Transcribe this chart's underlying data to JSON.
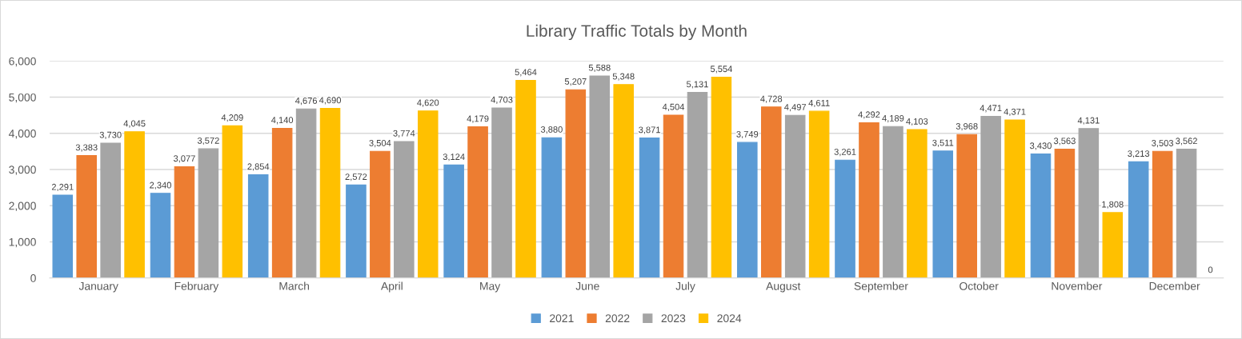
{
  "chart_data": {
    "type": "bar",
    "title": "Library Traffic Totals by Month",
    "categories": [
      "January",
      "February",
      "March",
      "April",
      "May",
      "June",
      "July",
      "August",
      "September",
      "October",
      "November",
      "December"
    ],
    "series": [
      {
        "name": "2021",
        "color": "#5b9bd5",
        "values": [
          2291,
          2340,
          2854,
          2572,
          3124,
          3880,
          3871,
          3749,
          3261,
          3511,
          3430,
          3213
        ],
        "value_labels": [
          "2,291",
          "2,340",
          "2,854",
          "2,572",
          "3,124",
          "3,880",
          "3,871",
          "3,749",
          "3,261",
          "3,511",
          "3,430",
          "3,213"
        ]
      },
      {
        "name": "2022",
        "color": "#ed7d31",
        "values": [
          3383,
          3077,
          4140,
          3504,
          4179,
          5207,
          4504,
          4728,
          4292,
          3968,
          3563,
          3503
        ],
        "value_labels": [
          "3,383",
          "3,077",
          "4,140",
          "3,504",
          "4,179",
          "5,207",
          "4,504",
          "4,728",
          "4,292",
          "3,968",
          "3,563",
          "3,503"
        ]
      },
      {
        "name": "2023",
        "color": "#a5a5a5",
        "values": [
          3730,
          3572,
          4676,
          3774,
          4703,
          5588,
          5131,
          4497,
          4189,
          4471,
          4131,
          3562
        ],
        "value_labels": [
          "3,730",
          "3,572",
          "4,676",
          "3,774",
          "4,703",
          "5,588",
          "5,131",
          "4,497",
          "4,189",
          "4,471",
          "4,131",
          "3,562"
        ]
      },
      {
        "name": "2024",
        "color": "#ffc000",
        "values": [
          4045,
          4209,
          4690,
          4620,
          5464,
          5348,
          5554,
          4611,
          4103,
          4371,
          1808,
          0
        ],
        "value_labels": [
          "4,045",
          "4,209",
          "4,690",
          "4,620",
          "5,464",
          "5,348",
          "5,554",
          "4,611",
          "4,103",
          "4,371",
          "1,808",
          "0"
        ]
      }
    ],
    "ylim": [
      0,
      6000
    ],
    "yticks": [
      {
        "value": 0,
        "label": "0"
      },
      {
        "value": 1000,
        "label": "1,000"
      },
      {
        "value": 2000,
        "label": "2,000"
      },
      {
        "value": 3000,
        "label": "3,000"
      },
      {
        "value": 4000,
        "label": "4,000"
      },
      {
        "value": 5000,
        "label": "5,000"
      },
      {
        "value": 6000,
        "label": "6,000"
      }
    ],
    "grid": "y",
    "legend": "bottom"
  }
}
